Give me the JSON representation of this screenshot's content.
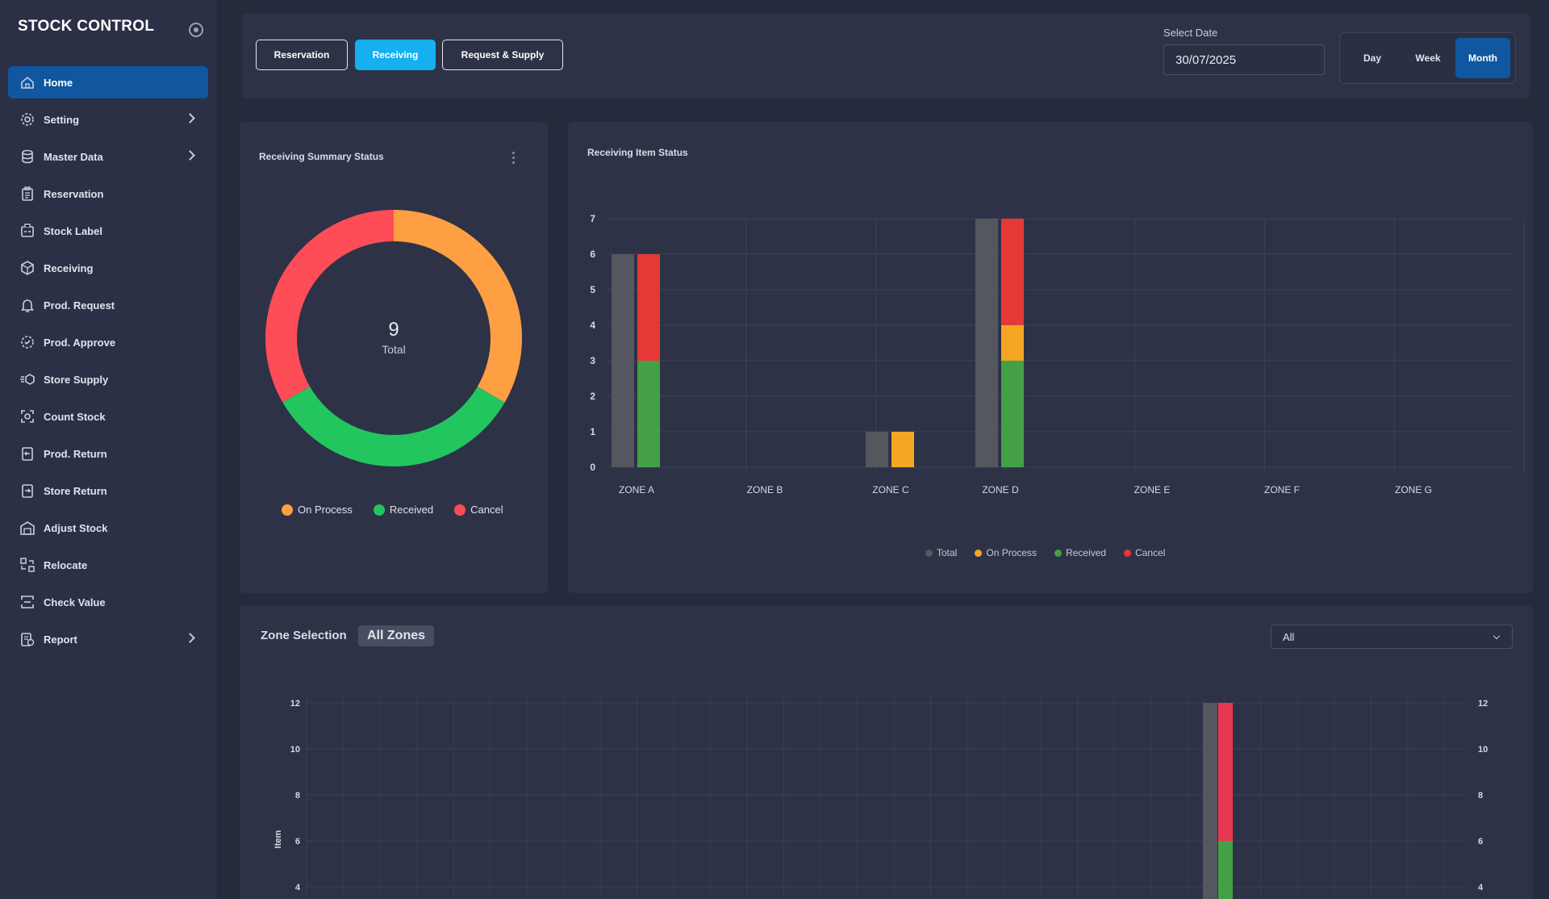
{
  "app": {
    "title": "STOCK CONTROL"
  },
  "sidebar": {
    "items": [
      {
        "label": "Home",
        "icon": "home-icon",
        "active": true,
        "submenu": false
      },
      {
        "label": "Setting",
        "icon": "gear-icon",
        "active": false,
        "submenu": true
      },
      {
        "label": "Master Data",
        "icon": "database-icon",
        "active": false,
        "submenu": true
      },
      {
        "label": "Reservation",
        "icon": "clipboard-icon",
        "active": false,
        "submenu": false
      },
      {
        "label": "Stock Label",
        "icon": "label-icon",
        "active": false,
        "submenu": false
      },
      {
        "label": "Receiving",
        "icon": "box-receive-icon",
        "active": false,
        "submenu": false
      },
      {
        "label": "Prod. Request",
        "icon": "bell-icon",
        "active": false,
        "submenu": false
      },
      {
        "label": "Prod. Approve",
        "icon": "gear-check-icon",
        "active": false,
        "submenu": false
      },
      {
        "label": "Store Supply",
        "icon": "delivery-icon",
        "active": false,
        "submenu": false
      },
      {
        "label": "Count Stock",
        "icon": "scan-icon",
        "active": false,
        "submenu": false
      },
      {
        "label": "Prod. Return",
        "icon": "return-icon",
        "active": false,
        "submenu": false
      },
      {
        "label": "Store Return",
        "icon": "store-return-icon",
        "active": false,
        "submenu": false
      },
      {
        "label": "Adjust Stock",
        "icon": "warehouse-icon",
        "active": false,
        "submenu": false
      },
      {
        "label": "Relocate",
        "icon": "relocate-icon",
        "active": false,
        "submenu": false
      },
      {
        "label": "Check Value",
        "icon": "check-value-icon",
        "active": false,
        "submenu": false
      },
      {
        "label": "Report",
        "icon": "report-icon",
        "active": false,
        "submenu": true
      }
    ]
  },
  "topbar": {
    "tabs": [
      {
        "label": "Reservation",
        "active": false
      },
      {
        "label": "Receiving",
        "active": true
      },
      {
        "label": "Request & Supply",
        "active": false
      }
    ],
    "date_label": "Select Date",
    "date_value": "30/07/2025",
    "periods": [
      {
        "label": "Day",
        "active": false
      },
      {
        "label": "Week",
        "active": false
      },
      {
        "label": "Month",
        "active": true
      }
    ]
  },
  "summary": {
    "title": "Receiving Summary Status",
    "center_value": "9",
    "center_label": "Total",
    "legend": [
      {
        "label": "On Process",
        "color": "#ff9f43"
      },
      {
        "label": "Received",
        "color": "#22c55e"
      },
      {
        "label": "Cancel",
        "color": "#ff4d57"
      }
    ]
  },
  "item_status": {
    "title": "Receiving Item Status",
    "legend": [
      {
        "label": "Total",
        "color": "#55575e"
      },
      {
        "label": "On Process",
        "color": "#f5a623"
      },
      {
        "label": "Received",
        "color": "#43a047"
      },
      {
        "label": "Cancel",
        "color": "#e53935"
      }
    ]
  },
  "zone_section": {
    "title": "Zone Selection",
    "chip": "All Zones",
    "select_value": "All"
  },
  "chart_data": [
    {
      "type": "pie",
      "title": "Receiving Summary Status",
      "labels": [
        "On Process",
        "Received",
        "Cancel"
      ],
      "values": [
        3,
        3,
        3
      ],
      "colors": [
        "#ff9f43",
        "#22c55e",
        "#ff4d57"
      ],
      "center_text": "9 Total"
    },
    {
      "type": "bar",
      "title": "Receiving Item Status",
      "categories": [
        "ZONE A",
        "ZONE B",
        "ZONE C",
        "ZONE D",
        "ZONE E",
        "ZONE F",
        "ZONE G"
      ],
      "ylim": [
        0,
        7
      ],
      "yticks": [
        0,
        1,
        2,
        3,
        4,
        5,
        6,
        7
      ],
      "grid": true,
      "legend_position": "bottom",
      "series": [
        {
          "name": "Total",
          "values": [
            6,
            0,
            1,
            7,
            0,
            0,
            0
          ]
        },
        {
          "name": "On Process",
          "values": [
            0,
            0,
            1,
            1,
            0,
            0,
            0
          ]
        },
        {
          "name": "Received",
          "values": [
            3,
            0,
            0,
            3,
            0,
            0,
            0
          ]
        },
        {
          "name": "Cancel",
          "values": [
            3,
            0,
            0,
            3,
            0,
            0,
            0
          ]
        }
      ]
    },
    {
      "type": "bar",
      "title": "",
      "ylabel": "Item",
      "ylim_visible": [
        4,
        12
      ],
      "yticks": [
        4,
        6,
        8,
        10,
        12
      ],
      "grid": true,
      "series": [
        {
          "name": "Total",
          "values": [
            12
          ]
        },
        {
          "name": "Received",
          "values": [
            6
          ]
        },
        {
          "name": "Cancel",
          "values": [
            6
          ]
        }
      ]
    }
  ]
}
